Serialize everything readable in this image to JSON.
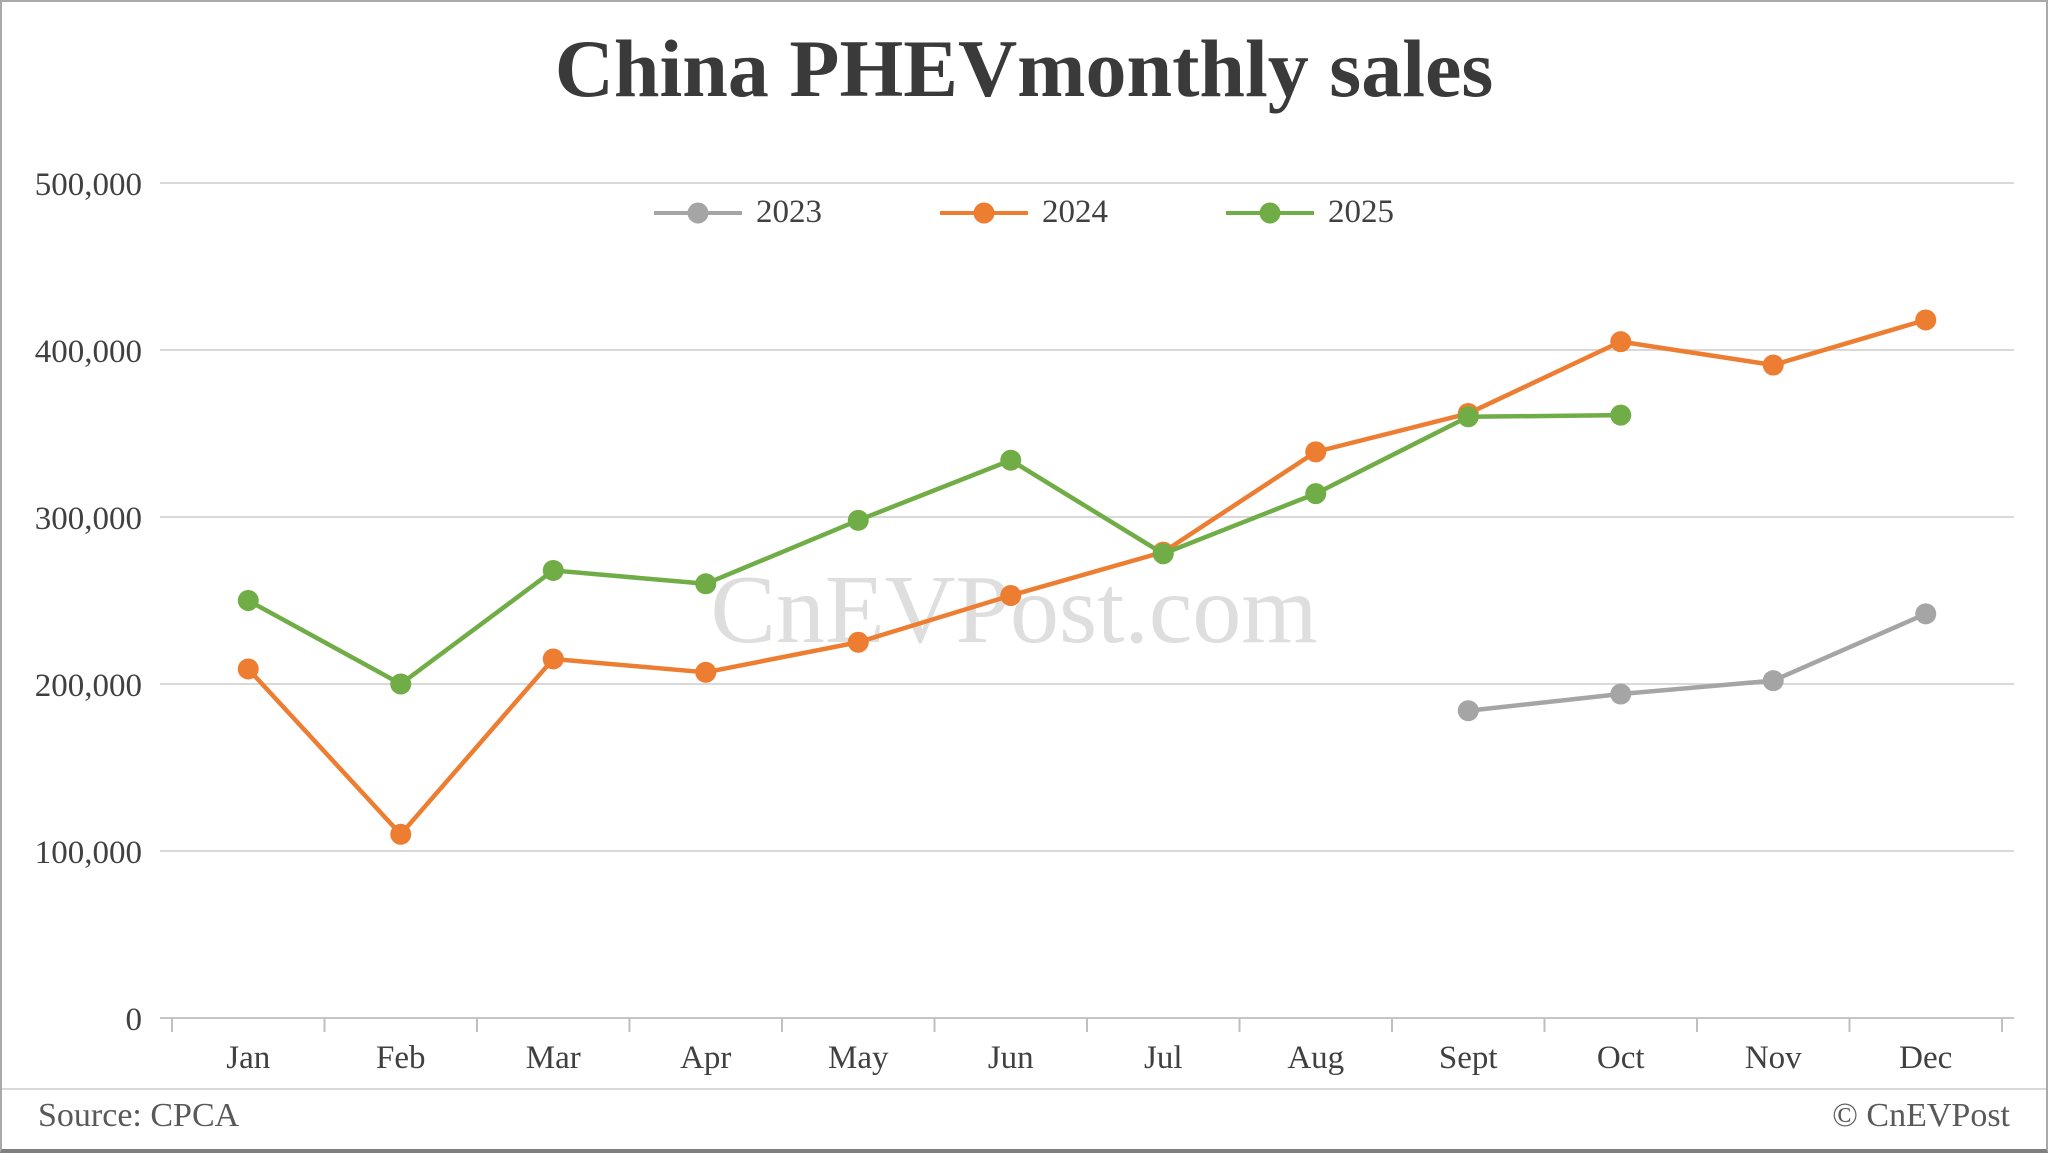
{
  "header": {
    "title": "China PHEVmonthly sales"
  },
  "chart_data": {
    "type": "line",
    "title": "China PHEVmonthly sales",
    "categories": [
      "Jan",
      "Feb",
      "Mar",
      "Apr",
      "May",
      "Jun",
      "Jul",
      "Aug",
      "Sept",
      "Oct",
      "Nov",
      "Dec"
    ],
    "y_axis": {
      "min": 0,
      "max": 500000,
      "tick_interval": 100000,
      "tick_labels": [
        "0",
        "100,000",
        "200,000",
        "300,000",
        "400,000",
        "500,000"
      ]
    },
    "grid": true,
    "legend_position": "top-center",
    "series": [
      {
        "name": "2023",
        "color": "#a5a5a5",
        "values": [
          null,
          null,
          null,
          null,
          null,
          null,
          null,
          null,
          184000,
          194000,
          202000,
          242000
        ]
      },
      {
        "name": "2024",
        "color": "#ed7d31",
        "values": [
          209000,
          110000,
          215000,
          207000,
          225000,
          253000,
          279000,
          339000,
          362000,
          405000,
          391000,
          418000
        ]
      },
      {
        "name": "2025",
        "color": "#70ad47",
        "values": [
          250000,
          200000,
          268000,
          260000,
          298000,
          334000,
          278000,
          314000,
          360000,
          361000,
          null,
          null
        ]
      }
    ],
    "colors": {
      "gridline": "#d9d9d9",
      "axis_line": "#c6c6c6",
      "tick_mark": "#bfbfbf",
      "axis_text": "#404040",
      "title_text": "#3a3a3a",
      "footer_text": "#595959",
      "watermark_text": "#dedede"
    }
  },
  "watermark": {
    "text": "CnEVPost.com"
  },
  "footer": {
    "source": "Source: CPCA",
    "credit": "© CnEVPost"
  }
}
